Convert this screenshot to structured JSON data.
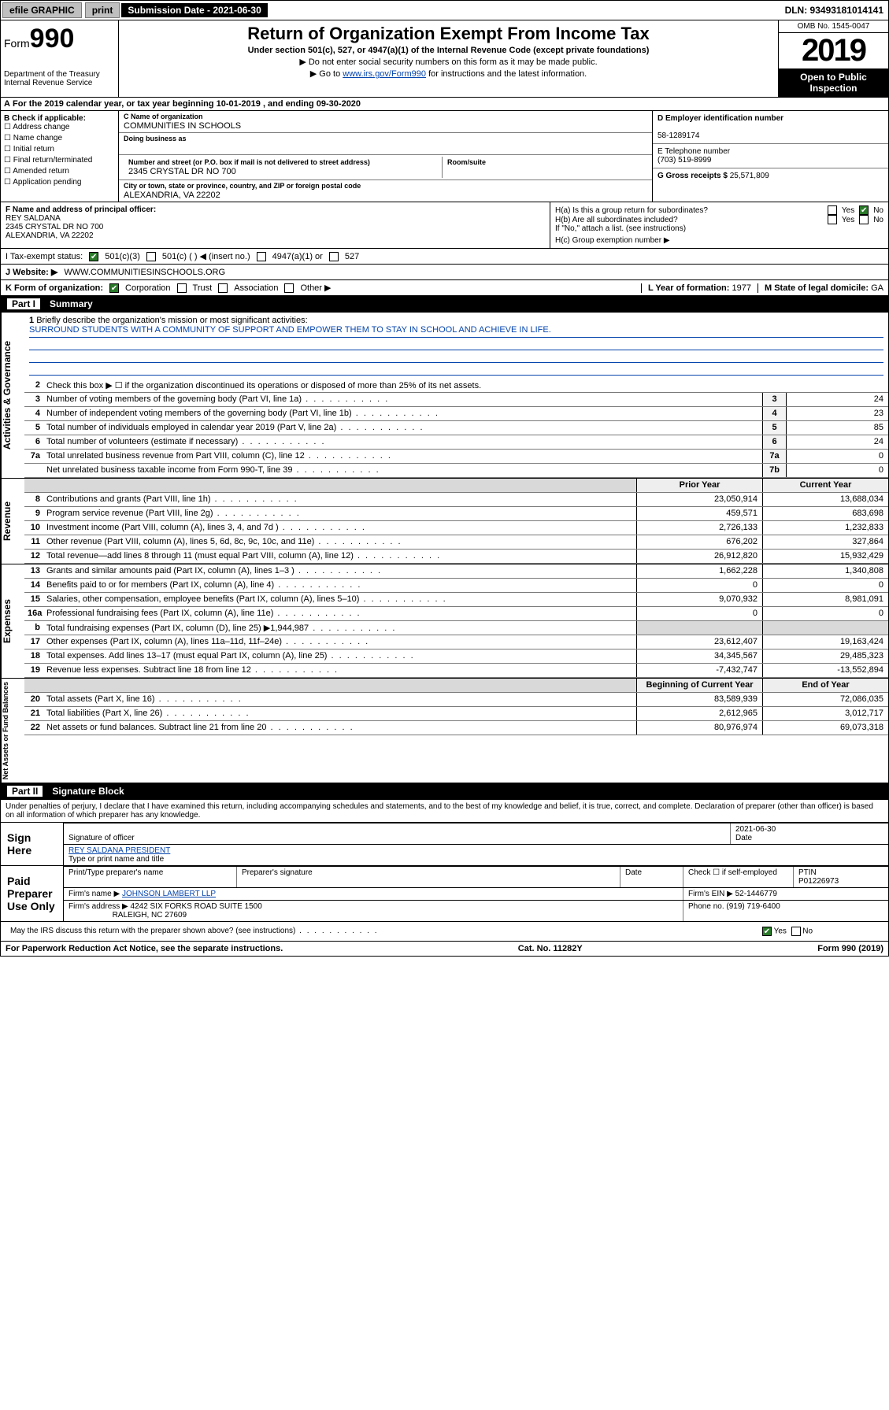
{
  "topbar": {
    "efile": "efile GRAPHIC",
    "print": "print",
    "subdate_label": "Submission Date - 2021-06-30",
    "dln": "DLN: 93493181014141"
  },
  "header": {
    "form_prefix": "Form",
    "form_no": "990",
    "dept": "Department of the Treasury\nInternal Revenue Service",
    "title": "Return of Organization Exempt From Income Tax",
    "sub": "Under section 501(c), 527, or 4947(a)(1) of the Internal Revenue Code (except private foundations)",
    "note1": "▶ Do not enter social security numbers on this form as it may be made public.",
    "note2_pre": "▶ Go to ",
    "note2_link": "www.irs.gov/Form990",
    "note2_post": " for instructions and the latest information.",
    "omb": "OMB No. 1545-0047",
    "year": "2019",
    "open": "Open to Public Inspection"
  },
  "A": "For the 2019 calendar year, or tax year beginning 10-01-2019    , and ending 09-30-2020",
  "B": {
    "label": "B Check if applicable:",
    "items": [
      "Address change",
      "Name change",
      "Initial return",
      "Final return/terminated",
      "Amended return",
      "Application pending"
    ]
  },
  "C": {
    "name_lab": "C Name of organization",
    "name": "COMMUNITIES IN SCHOOLS",
    "dba_lab": "Doing business as",
    "dba": "",
    "street_lab": "Number and street (or P.O. box if mail is not delivered to street address)",
    "room_lab": "Room/suite",
    "street": "2345 CRYSTAL DR NO 700",
    "city_lab": "City or town, state or province, country, and ZIP or foreign postal code",
    "city": "ALEXANDRIA, VA  22202"
  },
  "D": {
    "lab": "D Employer identification number",
    "val": "58-1289174"
  },
  "E": {
    "lab": "E Telephone number",
    "val": "(703) 519-8999"
  },
  "G": {
    "lab": "G Gross receipts $",
    "val": "25,571,809"
  },
  "F": {
    "lab": "F  Name and address of principal officer:",
    "name": "REY SALDANA",
    "addr1": "2345 CRYSTAL DR NO 700",
    "addr2": "ALEXANDRIA, VA  22202"
  },
  "H": {
    "a": "H(a)  Is this a group return for subordinates?",
    "a_yes": "Yes",
    "a_no": "No",
    "b": "H(b)  Are all subordinates included?",
    "b_note": "If \"No,\" attach a list. (see instructions)",
    "c": "H(c)  Group exemption number ▶"
  },
  "I": {
    "lab": "I    Tax-exempt status:",
    "c501c3": "501(c)(3)",
    "c501c": "501(c) (   ) ◀ (insert no.)",
    "c4947": "4947(a)(1) or",
    "c527": "527"
  },
  "J": {
    "lab": "J    Website: ▶",
    "val": "WWW.COMMUNITIESINSCHOOLS.ORG"
  },
  "K": {
    "lab": "K Form of organization:",
    "opts": [
      "Corporation",
      "Trust",
      "Association",
      "Other ▶"
    ]
  },
  "L": {
    "lab": "L Year of formation:",
    "val": "1977"
  },
  "M": {
    "lab": "M State of legal domicile:",
    "val": "GA"
  },
  "part1": {
    "label": "Part I",
    "title": "Summary"
  },
  "summary": {
    "q1": "Briefly describe the organization's mission or most significant activities:",
    "mission": "SURROUND STUDENTS WITH A COMMUNITY OF SUPPORT AND EMPOWER THEM TO STAY IN SCHOOL AND ACHIEVE IN LIFE.",
    "q2": "Check this box ▶ ☐  if the organization discontinued its operations or disposed of more than 25% of its net assets.",
    "rows_gov": [
      {
        "n": "3",
        "d": "Number of voting members of the governing body (Part VI, line 1a)",
        "box": "3",
        "v": "24"
      },
      {
        "n": "4",
        "d": "Number of independent voting members of the governing body (Part VI, line 1b)",
        "box": "4",
        "v": "23"
      },
      {
        "n": "5",
        "d": "Total number of individuals employed in calendar year 2019 (Part V, line 2a)",
        "box": "5",
        "v": "85"
      },
      {
        "n": "6",
        "d": "Total number of volunteers (estimate if necessary)",
        "box": "6",
        "v": "24"
      },
      {
        "n": "7a",
        "d": "Total unrelated business revenue from Part VIII, column (C), line 12",
        "box": "7a",
        "v": "0"
      },
      {
        "n": "",
        "d": "Net unrelated business taxable income from Form 990-T, line 39",
        "box": "7b",
        "v": "0"
      }
    ],
    "head_prior": "Prior Year",
    "head_curr": "Current Year",
    "rows_rev": [
      {
        "n": "8",
        "d": "Contributions and grants (Part VIII, line 1h)",
        "p": "23,050,914",
        "c": "13,688,034"
      },
      {
        "n": "9",
        "d": "Program service revenue (Part VIII, line 2g)",
        "p": "459,571",
        "c": "683,698"
      },
      {
        "n": "10",
        "d": "Investment income (Part VIII, column (A), lines 3, 4, and 7d )",
        "p": "2,726,133",
        "c": "1,232,833"
      },
      {
        "n": "11",
        "d": "Other revenue (Part VIII, column (A), lines 5, 6d, 8c, 9c, 10c, and 11e)",
        "p": "676,202",
        "c": "327,864"
      },
      {
        "n": "12",
        "d": "Total revenue—add lines 8 through 11 (must equal Part VIII, column (A), line 12)",
        "p": "26,912,820",
        "c": "15,932,429"
      }
    ],
    "rows_exp": [
      {
        "n": "13",
        "d": "Grants and similar amounts paid (Part IX, column (A), lines 1–3 )",
        "p": "1,662,228",
        "c": "1,340,808"
      },
      {
        "n": "14",
        "d": "Benefits paid to or for members (Part IX, column (A), line 4)",
        "p": "0",
        "c": "0"
      },
      {
        "n": "15",
        "d": "Salaries, other compensation, employee benefits (Part IX, column (A), lines 5–10)",
        "p": "9,070,932",
        "c": "8,981,091"
      },
      {
        "n": "16a",
        "d": "Professional fundraising fees (Part IX, column (A), line 11e)",
        "p": "0",
        "c": "0"
      },
      {
        "n": "b",
        "d": "Total fundraising expenses (Part IX, column (D), line 25) ▶1,944,987",
        "p": "",
        "c": "",
        "shade": true
      },
      {
        "n": "17",
        "d": "Other expenses (Part IX, column (A), lines 11a–11d, 11f–24e)",
        "p": "23,612,407",
        "c": "19,163,424"
      },
      {
        "n": "18",
        "d": "Total expenses. Add lines 13–17 (must equal Part IX, column (A), line 25)",
        "p": "34,345,567",
        "c": "29,485,323"
      },
      {
        "n": "19",
        "d": "Revenue less expenses. Subtract line 18 from line 12",
        "p": "-7,432,747",
        "c": "-13,552,894"
      }
    ],
    "head_begin": "Beginning of Current Year",
    "head_end": "End of Year",
    "rows_net": [
      {
        "n": "20",
        "d": "Total assets (Part X, line 16)",
        "p": "83,589,939",
        "c": "72,086,035"
      },
      {
        "n": "21",
        "d": "Total liabilities (Part X, line 26)",
        "p": "2,612,965",
        "c": "3,012,717"
      },
      {
        "n": "22",
        "d": "Net assets or fund balances. Subtract line 21 from line 20",
        "p": "80,976,974",
        "c": "69,073,318"
      }
    ],
    "vlabels": {
      "gov": "Activities & Governance",
      "rev": "Revenue",
      "exp": "Expenses",
      "net": "Net Assets or Fund Balances"
    }
  },
  "part2": {
    "label": "Part II",
    "title": "Signature Block"
  },
  "sig": {
    "decl": "Under penalties of perjury, I declare that I have examined this return, including accompanying schedules and statements, and to the best of my knowledge and belief, it is true, correct, and complete. Declaration of preparer (other than officer) is based on all information of which preparer has any knowledge.",
    "here": "Sign Here",
    "sig_officer": "Signature of officer",
    "date": "2021-06-30",
    "date_lab": "Date",
    "name_title": "REY SALDANA  PRESIDENT",
    "name_title_lab": "Type or print name and title",
    "paid": "Paid Preparer Use Only",
    "prep_name_lab": "Print/Type preparer's name",
    "prep_sig_lab": "Preparer's signature",
    "prep_date_lab": "Date",
    "self_emp": "Check ☐ if self-employed",
    "ptin_lab": "PTIN",
    "ptin": "P01226973",
    "firm_name_lab": "Firm's name      ▶",
    "firm_name": "JOHNSON LAMBERT LLP",
    "firm_ein_lab": "Firm's EIN ▶",
    "firm_ein": "52-1446779",
    "firm_addr_lab": "Firm's address ▶",
    "firm_addr1": "4242 SIX FORKS ROAD SUITE 1500",
    "firm_addr2": "RALEIGH, NC  27609",
    "phone_lab": "Phone no.",
    "phone": "(919) 719-6400",
    "discuss": "May the IRS discuss this return with the preparer shown above? (see instructions)",
    "yes": "Yes",
    "no": "No"
  },
  "footer": {
    "left": "For Paperwork Reduction Act Notice, see the separate instructions.",
    "mid": "Cat. No. 11282Y",
    "right": "Form 990 (2019)"
  }
}
